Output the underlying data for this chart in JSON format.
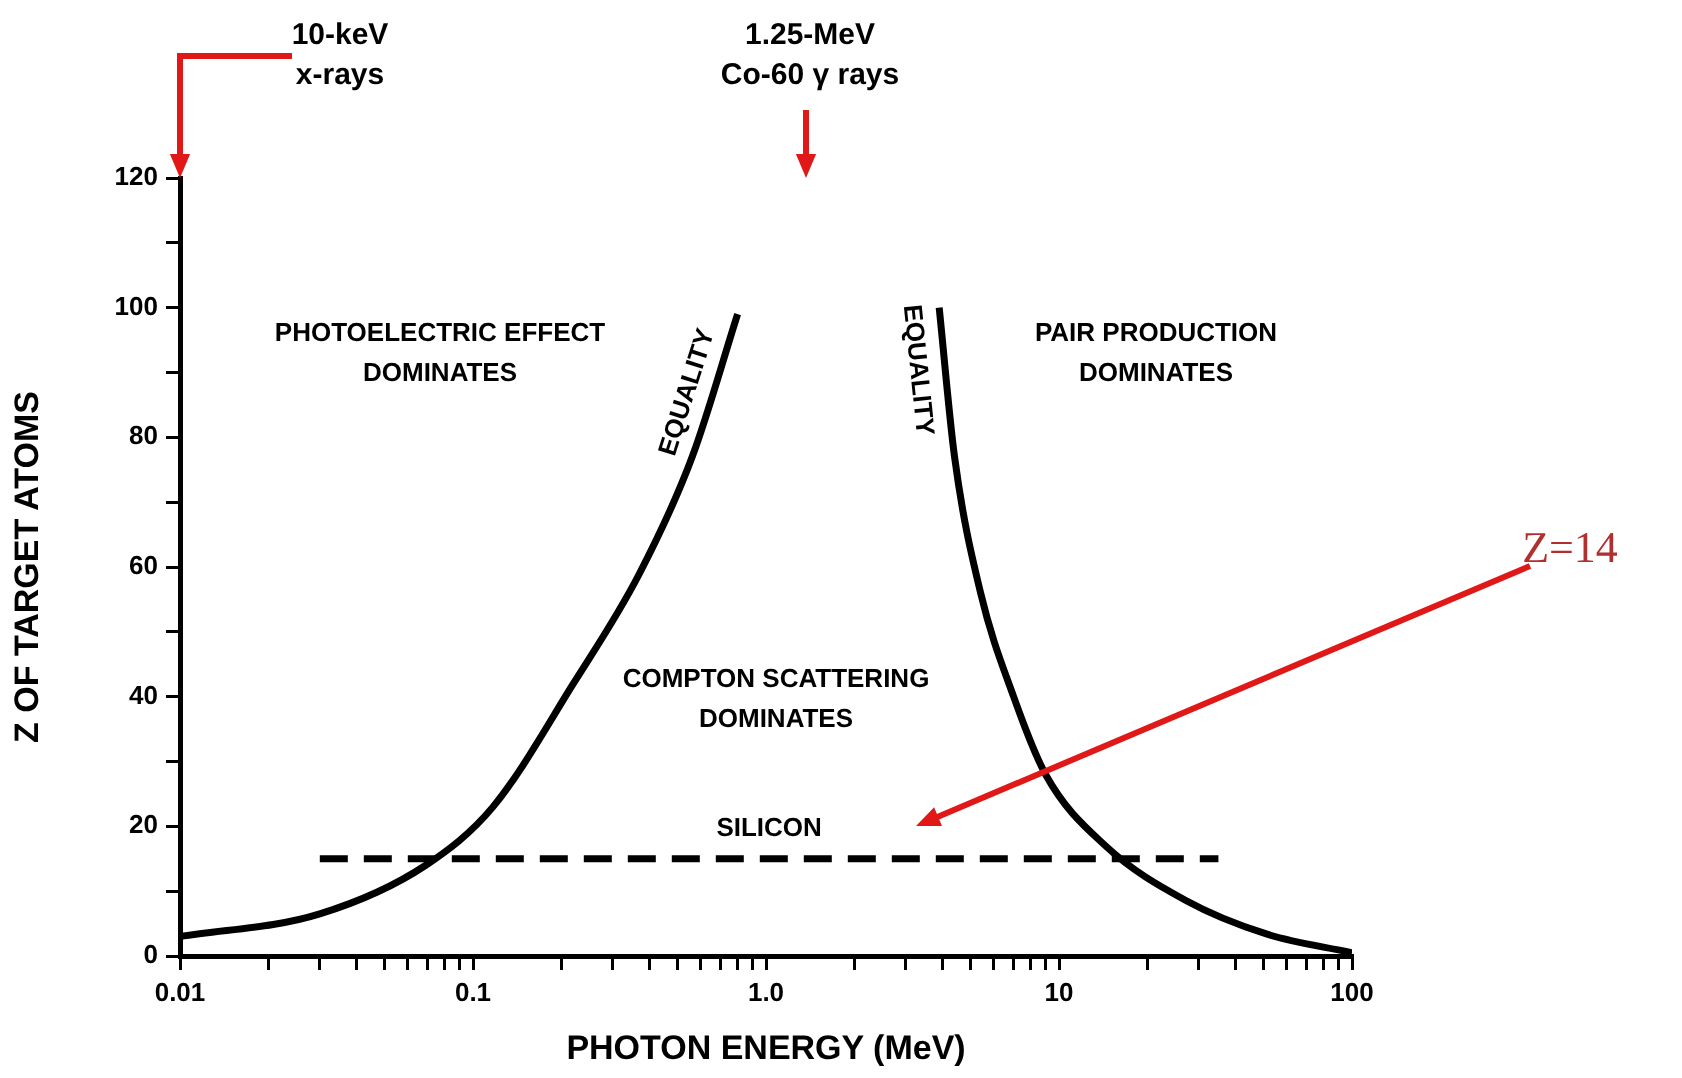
{
  "chart_data": {
    "type": "line",
    "xlabel": "PHOTON ENERGY (MeV)",
    "ylabel": "Z OF TARGET ATOMS",
    "log": "x",
    "xlim": [
      0.01,
      100
    ],
    "ylim": [
      0,
      120
    ],
    "xticks": [
      0.01,
      {
        "value": 0.02,
        "label": null
      },
      {
        "value": 0.03,
        "label": null
      },
      {
        "value": 0.04,
        "label": null
      },
      {
        "value": 0.05,
        "label": null
      },
      {
        "value": 0.06,
        "label": null
      },
      {
        "value": 0.07,
        "label": null
      },
      {
        "value": 0.08,
        "label": null
      },
      {
        "value": 0.09,
        "label": null
      },
      0.1,
      {
        "value": 0.2,
        "label": null
      },
      {
        "value": 0.3,
        "label": null
      },
      {
        "value": 0.4,
        "label": null
      },
      {
        "value": 0.5,
        "label": null
      },
      {
        "value": 0.6,
        "label": null
      },
      {
        "value": 0.7,
        "label": null
      },
      {
        "value": 0.8,
        "label": null
      },
      {
        "value": 0.9,
        "label": null
      },
      {
        "value": 1,
        "label": "1.0"
      },
      {
        "value": 2,
        "label": null
      },
      {
        "value": 3,
        "label": null
      },
      {
        "value": 4,
        "label": null
      },
      {
        "value": 5,
        "label": null
      },
      {
        "value": 6,
        "label": null
      },
      {
        "value": 7,
        "label": null
      },
      {
        "value": 8,
        "label": null
      },
      {
        "value": 9,
        "label": null
      },
      10,
      {
        "value": 20,
        "label": null
      },
      {
        "value": 30,
        "label": null
      },
      {
        "value": 40,
        "label": null
      },
      {
        "value": 50,
        "label": null
      },
      {
        "value": 60,
        "label": null
      },
      {
        "value": 70,
        "label": null
      },
      {
        "value": 80,
        "label": null
      },
      {
        "value": 90,
        "label": null
      },
      100
    ],
    "yticks": [
      0,
      {
        "value": 10,
        "label": null
      },
      20,
      {
        "value": 30,
        "label": null
      },
      40,
      {
        "value": 50,
        "label": null
      },
      60,
      {
        "value": 70,
        "label": null
      },
      80,
      {
        "value": 90,
        "label": null
      },
      100,
      {
        "value": 110,
        "label": null
      },
      120
    ],
    "grid": false,
    "legend": false,
    "marker": "none",
    "series": [
      {
        "name": "EQUALITY",
        "color": "#000000",
        "x": [
          0.01,
          0.03,
          0.069,
          0.117,
          0.22,
          0.37,
          0.56,
          0.8
        ],
        "values": [
          3,
          6.5,
          14,
          23,
          42,
          59,
          77,
          99
        ]
      },
      {
        "name": "EQUALITY",
        "color": "#000000",
        "x": [
          3.9,
          4.4,
          5.4,
          7,
          9,
          14.4,
          27,
          51,
          100
        ],
        "values": [
          100,
          77,
          56,
          40,
          28,
          17,
          8.6,
          3.4,
          0.5
        ]
      },
      {
        "name": "SILICON",
        "color": "#000000",
        "line_style": "dashed",
        "x": [
          0.03,
          35
        ],
        "values": [
          15,
          15
        ]
      }
    ],
    "annotations": [
      "10-keV\nx-rays",
      "1.25-MeV\nCo-60 γ rays",
      "PHOTOELECTRIC EFFECT\nDOMINATES",
      "PAIR PRODUCTION\nDOMINATES",
      "COMPTON SCATTERING\nDOMINATES",
      "Z=14"
    ]
  }
}
